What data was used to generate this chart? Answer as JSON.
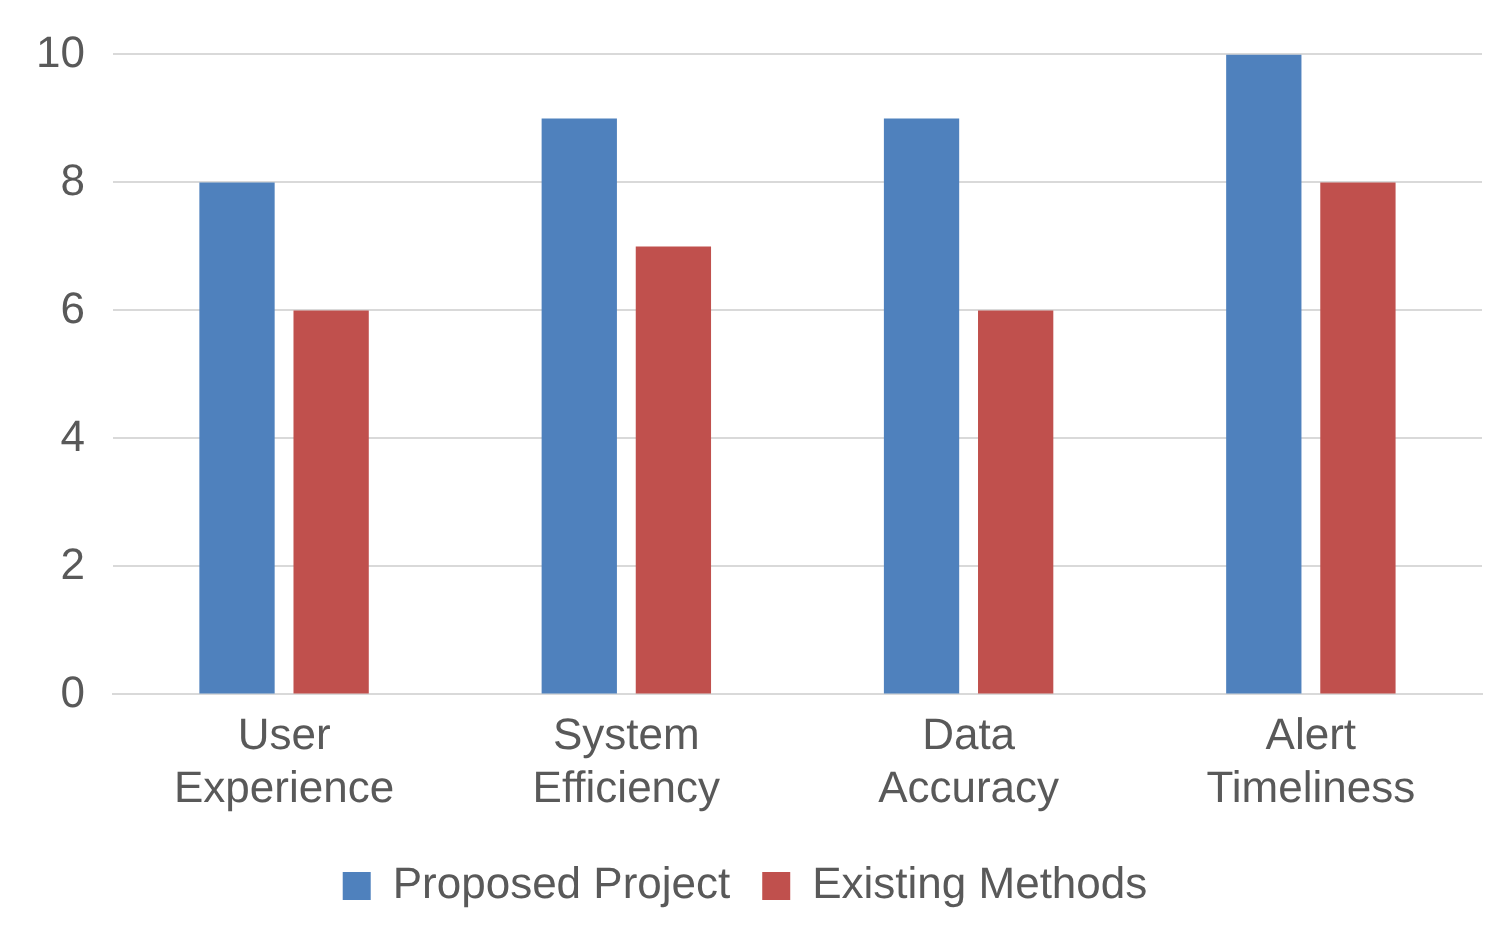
{
  "chart_data": {
    "type": "bar",
    "categories": [
      "User Experience",
      "System Efficiency",
      "Data Accuracy",
      "Alert Timeliness"
    ],
    "series": [
      {
        "name": "Proposed Project",
        "color": "#4f81bd",
        "values": [
          8,
          9,
          9,
          10
        ]
      },
      {
        "name": "Existing Methods",
        "color": "#c0504d",
        "values": [
          6,
          7,
          6,
          8
        ]
      }
    ],
    "ylim": [
      0,
      10
    ],
    "yticks": [
      0,
      2,
      4,
      6,
      8,
      10
    ],
    "grid": "y",
    "legend": "bottom"
  }
}
